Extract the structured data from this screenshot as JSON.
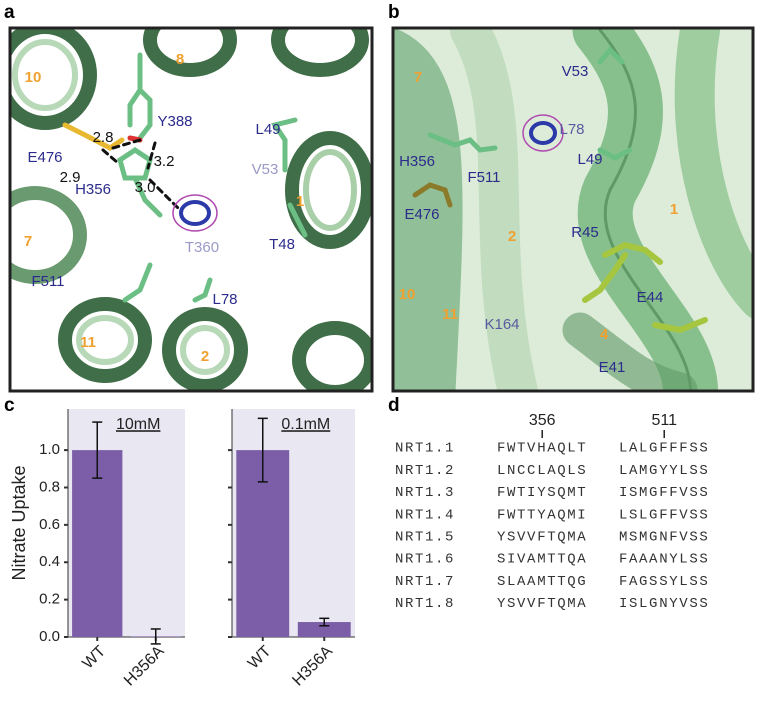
{
  "panel_a": {
    "label": "a",
    "labels": [
      {
        "text": "10",
        "color": "#f0a030"
      },
      {
        "text": "8",
        "color": "#f0a030"
      },
      {
        "text": "Y388",
        "color": "#2b2b8c"
      },
      {
        "text": "L49",
        "color": "#2b2b8c"
      },
      {
        "text": "2.8",
        "color": "#111111"
      },
      {
        "text": "E476",
        "color": "#2b2b8c"
      },
      {
        "text": "3.2",
        "color": "#111111"
      },
      {
        "text": "V53",
        "color": "#9a9ac8"
      },
      {
        "text": "2.9",
        "color": "#111111"
      },
      {
        "text": "1",
        "color": "#f0a030"
      },
      {
        "text": "H356",
        "color": "#2b2b8c"
      },
      {
        "text": "3.0",
        "color": "#111111"
      },
      {
        "text": "7",
        "color": "#f0a030"
      },
      {
        "text": "T360",
        "color": "#9a9ac8"
      },
      {
        "text": "T48",
        "color": "#2b2b8c"
      },
      {
        "text": "F511",
        "color": "#2b2b8c"
      },
      {
        "text": "L78",
        "color": "#2b2b8c"
      },
      {
        "text": "11",
        "color": "#f0a030"
      },
      {
        "text": "2",
        "color": "#f0a030"
      }
    ]
  },
  "panel_b": {
    "label": "b",
    "labels": [
      {
        "text": "7",
        "color": "#f0a030"
      },
      {
        "text": "V53",
        "color": "#2b2b8c"
      },
      {
        "text": "L78",
        "color": "#5a5aa0"
      },
      {
        "text": "H356",
        "color": "#2b2b8c"
      },
      {
        "text": "F511",
        "color": "#2b2b8c"
      },
      {
        "text": "L49",
        "color": "#2b2b8c"
      },
      {
        "text": "E476",
        "color": "#2b2b8c"
      },
      {
        "text": "1",
        "color": "#f0a030"
      },
      {
        "text": "2",
        "color": "#f0a030"
      },
      {
        "text": "R45",
        "color": "#2b2b8c"
      },
      {
        "text": "E44",
        "color": "#2b2b8c"
      },
      {
        "text": "10",
        "color": "#f0a030"
      },
      {
        "text": "11",
        "color": "#f0a030"
      },
      {
        "text": "K164",
        "color": "#5a5aa0"
      },
      {
        "text": "4",
        "color": "#f0a030"
      },
      {
        "text": "E41",
        "color": "#2b2b8c"
      }
    ]
  },
  "panel_c": {
    "label": "c"
  },
  "chart_data": [
    {
      "type": "bar",
      "title": "10mM",
      "y_label": "Nitrate Uptake",
      "categories": [
        "WT",
        "H356A"
      ],
      "values": [
        1.0,
        0.003
      ],
      "errors": [
        0.15,
        0.04
      ],
      "color": "#7b5ea7",
      "background": "#e9e7f1",
      "ylim": [
        0,
        1.22
      ],
      "yticks": [
        {
          "value": 0,
          "label": "0.0"
        },
        0.2,
        0.4,
        0.6,
        0.8,
        {
          "value": 1,
          "label": "1.0"
        }
      ]
    },
    {
      "type": "bar",
      "title": "0.1mM",
      "categories": [
        "WT",
        "H356A"
      ],
      "values": [
        1.0,
        0.08
      ],
      "errors": [
        0.17,
        0.02
      ],
      "color": "#7b5ea7",
      "background": "#e9e7f1",
      "ylim": [
        0,
        1.22
      ],
      "yticks": [
        0,
        0.2,
        0.4,
        0.6,
        0.8,
        1
      ]
    }
  ],
  "panel_d": {
    "label": "d",
    "positions": [
      "356",
      "511"
    ],
    "rows": [
      {
        "name": "NRT1.1",
        "seq1": [
          "FWTV",
          "H",
          "AQLT"
        ],
        "seq2": [
          "LALG",
          "F",
          "FF",
          "SS"
        ]
      },
      {
        "name": "NRT1.2",
        "seq1": [
          "LNCC",
          "L",
          "AQLS"
        ],
        "seq2": [
          "LAMG",
          "Y",
          "YL",
          "SS"
        ]
      },
      {
        "name": "NRT1.3",
        "seq1": [
          "FWTI",
          "Y",
          "SQMT"
        ],
        "seq2": [
          "ISMG",
          "F",
          "FV",
          "SS"
        ]
      },
      {
        "name": "NRT1.4",
        "seq1": [
          "FWTT",
          "Y",
          "AQMI"
        ],
        "seq2": [
          "LSLG",
          "F",
          "FV",
          "SS"
        ]
      },
      {
        "name": "NRT1.5",
        "seq1": [
          "YSVV",
          "F",
          "TQMA"
        ],
        "seq2": [
          "MSMG",
          "N",
          "FV",
          "SS"
        ]
      },
      {
        "name": "NRT1.6",
        "seq1": [
          "SIVA",
          "M",
          "TTQA"
        ],
        "seq2": [
          "FAAA",
          "N",
          "YL",
          "SS"
        ]
      },
      {
        "name": "NRT1.7",
        "seq1": [
          "SLAA",
          "M",
          "TTQG"
        ],
        "seq2": [
          "FAGS",
          "S",
          "YL",
          "SS"
        ]
      },
      {
        "name": "NRT1.8",
        "seq1": [
          "YSVV",
          "F",
          "TQMA"
        ],
        "seq2": [
          "ISLG",
          "N",
          "YV",
          "SS"
        ]
      }
    ]
  }
}
